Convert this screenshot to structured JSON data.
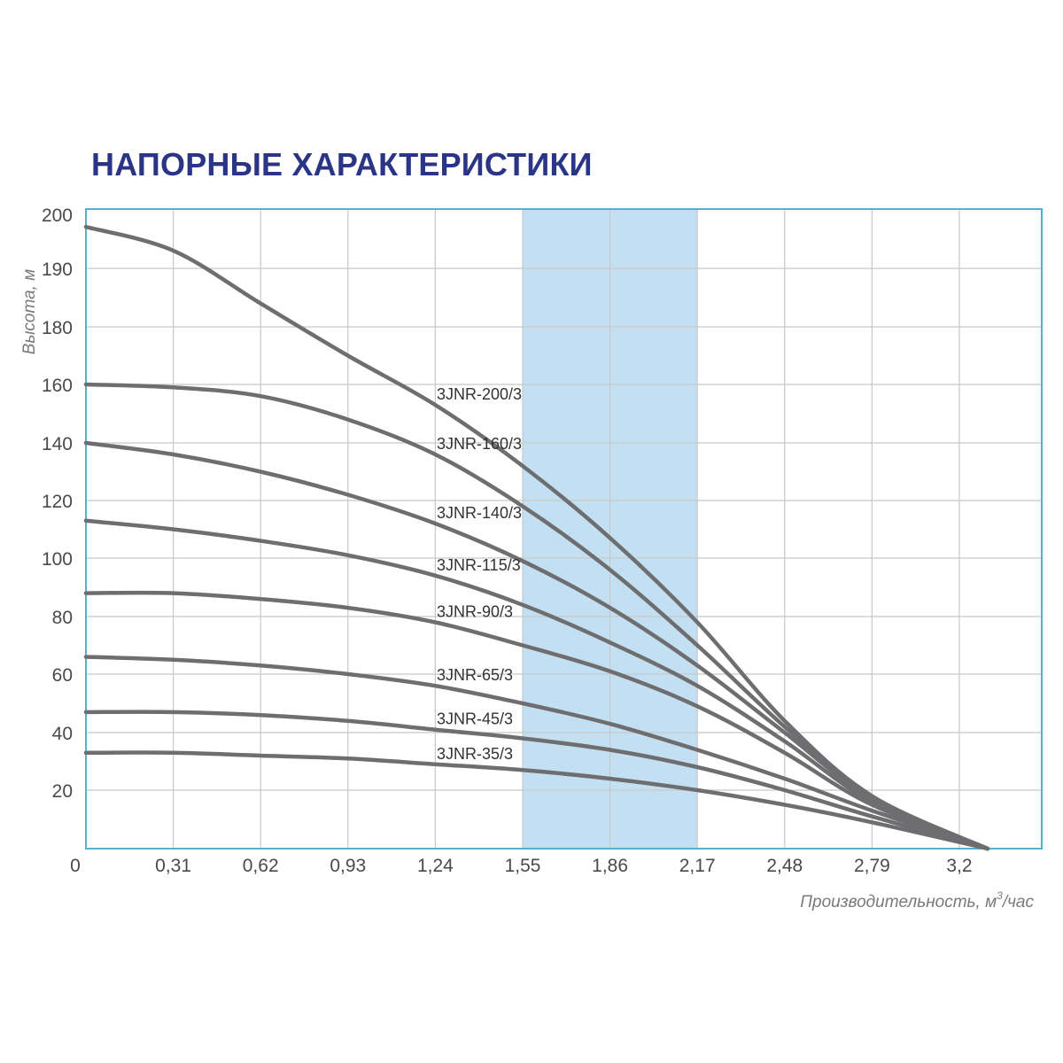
{
  "title": "НАПОРНЫЕ ХАРАКТЕРИСТИКИ",
  "colors": {
    "title": "#2b3585",
    "frame": "#4fb3d1",
    "grid": "#c8c8c8",
    "band": "#c3e0f3",
    "curve": "#6e6e70"
  },
  "chart_data": {
    "type": "line",
    "title": "НАПОРНЫЕ ХАРАКТЕРИСТИКИ",
    "xlabel_text": "Производительность, м",
    "xlabel_sup": "3",
    "xlabel_suffix": "/час",
    "ylabel": "Высота, м",
    "xlim": [
      0,
      3.4
    ],
    "ylim": [
      0,
      200
    ],
    "grid": true,
    "x_ticks": [
      "0",
      "0,31",
      "0,62",
      "0,93",
      "1,24",
      "1,55",
      "1,86",
      "2,17",
      "2,48",
      "2,79",
      "3,2"
    ],
    "y_ticks": [
      "20",
      "40",
      "60",
      "80",
      "100",
      "120",
      "140",
      "160",
      "180",
      "190",
      "200"
    ],
    "highlight_band": {
      "from": 1.55,
      "to": 2.17
    },
    "series": [
      {
        "name": "3JNR-200/3",
        "points": [
          [
            0,
            197
          ],
          [
            0.31,
            193
          ],
          [
            0.62,
            184
          ],
          [
            0.93,
            170
          ],
          [
            1.24,
            153
          ],
          [
            1.55,
            132
          ],
          [
            1.86,
            107
          ],
          [
            2.17,
            78
          ],
          [
            2.48,
            44
          ],
          [
            2.79,
            18
          ],
          [
            3.2,
            0
          ]
        ]
      },
      {
        "name": "3JNR-160/3",
        "points": [
          [
            0,
            160
          ],
          [
            0.31,
            159
          ],
          [
            0.62,
            156
          ],
          [
            0.93,
            148
          ],
          [
            1.24,
            136
          ],
          [
            1.55,
            118
          ],
          [
            1.86,
            96
          ],
          [
            2.17,
            70
          ],
          [
            2.48,
            42
          ],
          [
            2.79,
            17
          ],
          [
            3.2,
            0
          ]
        ]
      },
      {
        "name": "3JNR-140/3",
        "points": [
          [
            0,
            140
          ],
          [
            0.31,
            136
          ],
          [
            0.62,
            130
          ],
          [
            0.93,
            122
          ],
          [
            1.24,
            112
          ],
          [
            1.55,
            99
          ],
          [
            1.86,
            83
          ],
          [
            2.17,
            63
          ],
          [
            2.48,
            40
          ],
          [
            2.79,
            17
          ],
          [
            3.2,
            0
          ]
        ]
      },
      {
        "name": "3JNR-115/3",
        "points": [
          [
            0,
            113
          ],
          [
            0.31,
            110
          ],
          [
            0.62,
            106
          ],
          [
            0.93,
            101
          ],
          [
            1.24,
            94
          ],
          [
            1.55,
            84
          ],
          [
            1.86,
            71
          ],
          [
            2.17,
            56
          ],
          [
            2.48,
            37
          ],
          [
            2.79,
            16
          ],
          [
            3.2,
            0
          ]
        ]
      },
      {
        "name": "3JNR-90/3",
        "points": [
          [
            0,
            88
          ],
          [
            0.31,
            88
          ],
          [
            0.62,
            86
          ],
          [
            0.93,
            83
          ],
          [
            1.24,
            78
          ],
          [
            1.55,
            70
          ],
          [
            1.86,
            61
          ],
          [
            2.17,
            49
          ],
          [
            2.48,
            33
          ],
          [
            2.79,
            15
          ],
          [
            3.2,
            0
          ]
        ]
      },
      {
        "name": "3JNR-65/3",
        "points": [
          [
            0,
            66
          ],
          [
            0.31,
            65
          ],
          [
            0.62,
            63
          ],
          [
            0.93,
            60
          ],
          [
            1.24,
            56
          ],
          [
            1.55,
            50
          ],
          [
            1.86,
            43
          ],
          [
            2.17,
            34
          ],
          [
            2.48,
            24
          ],
          [
            2.79,
            13
          ],
          [
            3.2,
            0
          ]
        ]
      },
      {
        "name": "3JNR-45/3",
        "points": [
          [
            0,
            47
          ],
          [
            0.31,
            47
          ],
          [
            0.62,
            46
          ],
          [
            0.93,
            44
          ],
          [
            1.24,
            41
          ],
          [
            1.55,
            38
          ],
          [
            1.86,
            34
          ],
          [
            2.17,
            28
          ],
          [
            2.48,
            20
          ],
          [
            2.79,
            11
          ],
          [
            3.2,
            0
          ]
        ]
      },
      {
        "name": "3JNR-35/3",
        "points": [
          [
            0,
            33
          ],
          [
            0.31,
            33
          ],
          [
            0.62,
            32
          ],
          [
            0.93,
            31
          ],
          [
            1.24,
            29
          ],
          [
            1.55,
            27
          ],
          [
            1.86,
            24
          ],
          [
            2.17,
            20
          ],
          [
            2.48,
            15
          ],
          [
            2.79,
            9
          ],
          [
            3.2,
            0
          ]
        ]
      }
    ]
  }
}
